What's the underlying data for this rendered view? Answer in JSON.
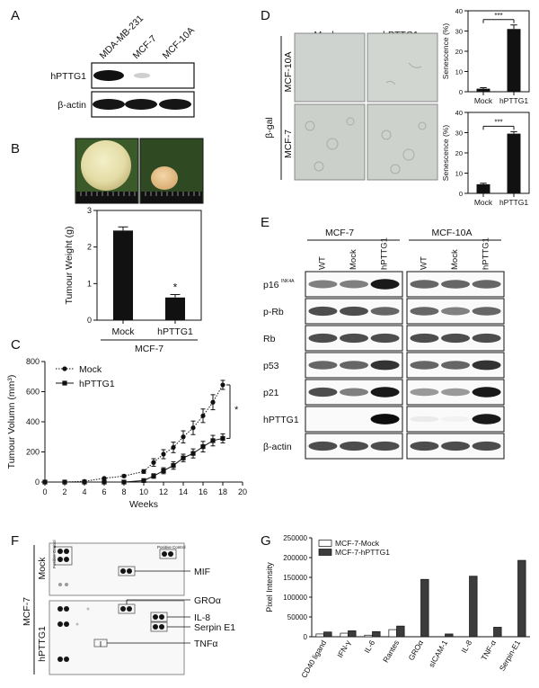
{
  "panels": {
    "A": {
      "letter": "A",
      "columns": [
        "MDA-MB-231",
        "MCF-7",
        "MCF-10A"
      ],
      "rows": [
        "hPTTG1",
        "β-actin"
      ]
    },
    "B": {
      "letter": "B",
      "group_label": "MCF-7"
    },
    "C": {
      "letter": "C",
      "significance": "*"
    },
    "D": {
      "letter": "D",
      "col_labels": [
        "Mock",
        "hPTTG1"
      ],
      "row_labels": [
        "MCF-10A",
        "MCF-7"
      ],
      "stain_label": "β-gal",
      "significance": "***"
    },
    "E": {
      "letter": "E",
      "groups": [
        "MCF-7",
        "MCF-10A"
      ],
      "lanes": [
        "WT",
        "Mock",
        "hPTTG1"
      ],
      "rows": [
        "p16",
        "p-Rb",
        "Rb",
        "p53",
        "p21",
        "hPTTG1",
        "β-actin"
      ],
      "p16_sup": "INK4A"
    },
    "F": {
      "letter": "F",
      "cell_line": "MCF-7",
      "conditions": [
        "Mock",
        "hPTTG1"
      ],
      "positive_control": "Positive Control",
      "spot_labels": [
        "MIF",
        "GROα",
        "IL-8",
        "Serpin E1",
        "TNFα"
      ]
    },
    "G": {
      "letter": "G"
    }
  },
  "chart_data": [
    {
      "panel": "B",
      "type": "bar",
      "categories": [
        "Mock",
        "hPTTG1"
      ],
      "values": [
        2.45,
        0.62
      ],
      "errors": [
        0.1,
        0.08
      ],
      "ylabel": "Tumour Weight (g)",
      "xlabel": "MCF-7",
      "ylim": [
        0,
        3
      ],
      "yticks": [
        0,
        1,
        2,
        3
      ],
      "annotations": [
        "*"
      ]
    },
    {
      "panel": "C",
      "type": "line",
      "x": [
        0,
        2,
        4,
        6,
        8,
        10,
        11,
        12,
        13,
        14,
        15,
        16,
        17,
        18
      ],
      "series": [
        {
          "name": "Mock",
          "marker": "circle",
          "values": [
            0,
            0,
            5,
            25,
            40,
            70,
            130,
            185,
            230,
            300,
            360,
            440,
            530,
            645
          ],
          "errors": [
            0,
            0,
            2,
            5,
            8,
            12,
            25,
            30,
            35,
            40,
            45,
            45,
            50,
            30
          ]
        },
        {
          "name": "hPTTG1",
          "marker": "square",
          "values": [
            0,
            0,
            0,
            0,
            0,
            10,
            40,
            75,
            110,
            160,
            190,
            235,
            275,
            290
          ],
          "errors": [
            0,
            0,
            0,
            0,
            0,
            5,
            15,
            20,
            25,
            25,
            30,
            35,
            35,
            30
          ]
        }
      ],
      "xlabel": "Weeks",
      "ylabel": "Tumour Volumn (mm³)",
      "xlim": [
        0,
        20
      ],
      "ylim": [
        0,
        800
      ],
      "xticks": [
        0,
        2,
        4,
        6,
        8,
        10,
        12,
        14,
        16,
        18,
        20
      ],
      "yticks": [
        0,
        200,
        400,
        600,
        800
      ]
    },
    {
      "panel": "D-top",
      "type": "bar",
      "categories": [
        "Mock",
        "hPTTG1"
      ],
      "values": [
        1.5,
        31
      ],
      "errors": [
        0.5,
        2
      ],
      "ylabel": "Senescence (%)",
      "ylim": [
        0,
        40
      ],
      "yticks": [
        0,
        10,
        20,
        30,
        40
      ],
      "annotations": [
        "***"
      ]
    },
    {
      "panel": "D-bottom",
      "type": "bar",
      "categories": [
        "Mock",
        "hPTTG1"
      ],
      "values": [
        4.5,
        29.5
      ],
      "errors": [
        0.5,
        1
      ],
      "ylabel": "Senescence (%)",
      "ylim": [
        0,
        40
      ],
      "yticks": [
        0,
        10,
        20,
        30,
        40
      ],
      "annotations": [
        "***"
      ]
    },
    {
      "panel": "G",
      "type": "bar",
      "categories": [
        "CD40 ligand",
        "IFN-γ",
        "IL-6",
        "Rantes",
        "GROα",
        "sICAM-1",
        "IL-8",
        "TNF-α",
        "Serpin-E1"
      ],
      "series": [
        {
          "name": "MCF-7-Mock",
          "color": "#ffffff",
          "values": [
            7000,
            9000,
            4000,
            18000,
            0,
            0,
            0,
            0,
            0
          ]
        },
        {
          "name": "MCF-7-hPTTG1",
          "color": "#3c3c3c",
          "values": [
            12000,
            15000,
            13000,
            27000,
            145000,
            7000,
            153000,
            24000,
            193000
          ]
        }
      ],
      "ylabel": "Pixel Intensity",
      "ylim": [
        0,
        250000
      ],
      "yticks": [
        0,
        50000,
        100000,
        150000,
        200000,
        250000
      ],
      "legend": "top-left"
    }
  ]
}
